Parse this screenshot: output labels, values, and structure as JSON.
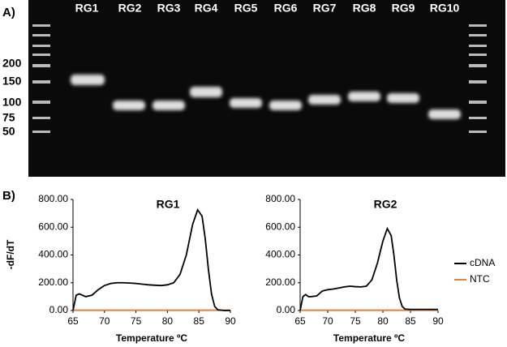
{
  "gel": {
    "panel_label": "A)",
    "lanes": [
      "RG1",
      "RG2",
      "RG3",
      "RG4",
      "RG5",
      "RG6",
      "RG7",
      "RG8",
      "RG9",
      "RG10"
    ],
    "ladder_labels": [
      "200",
      "150",
      "100",
      "75",
      "50"
    ]
  },
  "panel_b_label": "B)",
  "chart_data": [
    {
      "type": "line",
      "title": "RG1",
      "xlabel": "Temperature ºC",
      "ylabel": "-dF/dT",
      "x": [
        65,
        65.5,
        66,
        67,
        68,
        69,
        70,
        71,
        72,
        73,
        74,
        75,
        76,
        77,
        78,
        79,
        80,
        81,
        82,
        83,
        84,
        84.8,
        85.5,
        86,
        86.5,
        87,
        87.5,
        88,
        89,
        90
      ],
      "series": [
        {
          "name": "cDNA",
          "color": "#000000",
          "values": [
            0,
            110,
            120,
            100,
            110,
            150,
            180,
            195,
            200,
            200,
            198,
            195,
            190,
            185,
            182,
            180,
            185,
            200,
            260,
            400,
            620,
            725,
            680,
            520,
            300,
            120,
            30,
            5,
            0,
            0
          ]
        },
        {
          "name": "NTC",
          "color": "#f08030",
          "values": [
            3,
            3,
            3,
            3,
            3,
            3,
            3,
            3,
            3,
            3,
            3,
            3,
            3,
            3,
            3,
            3,
            3,
            3,
            3,
            3,
            3,
            3,
            3,
            3,
            3,
            3,
            3,
            3,
            3,
            3
          ]
        }
      ],
      "xlim": [
        65,
        90
      ],
      "xticks": [
        65,
        70,
        75,
        80,
        85,
        90
      ],
      "ylim": [
        0,
        800
      ],
      "yticks": [
        {
          "value": 0,
          "label": "0.00"
        },
        {
          "value": 200,
          "label": "200.00"
        },
        {
          "value": 400,
          "label": "400.00"
        },
        {
          "value": 600,
          "label": "600.00"
        },
        {
          "value": 800,
          "label": "800.00"
        }
      ]
    },
    {
      "type": "line",
      "title": "RG2",
      "xlabel": "Temperature ºC",
      "x": [
        65,
        65.5,
        66,
        66.5,
        67,
        68,
        69,
        70,
        71,
        72,
        73,
        74,
        75,
        76,
        77,
        78,
        79,
        80,
        80.8,
        81.5,
        82,
        82.5,
        83,
        83.5,
        84,
        85,
        88,
        90
      ],
      "series": [
        {
          "name": "cDNA",
          "color": "#000000",
          "values": [
            0,
            100,
            115,
            100,
            100,
            105,
            140,
            150,
            155,
            162,
            170,
            175,
            172,
            170,
            175,
            220,
            340,
            500,
            590,
            540,
            400,
            220,
            90,
            30,
            10,
            8,
            8,
            8
          ]
        },
        {
          "name": "NTC",
          "color": "#f08030",
          "values": [
            3,
            3,
            3,
            3,
            3,
            3,
            3,
            3,
            3,
            3,
            3,
            3,
            3,
            3,
            3,
            3,
            3,
            3,
            3,
            3,
            3,
            3,
            3,
            3,
            3,
            3,
            3,
            3
          ]
        }
      ],
      "xlim": [
        65,
        90
      ],
      "xticks": [
        65,
        70,
        75,
        80,
        85,
        90
      ],
      "ylim": [
        0,
        800
      ],
      "yticks": [
        {
          "value": 0,
          "label": "0.00"
        },
        {
          "value": 200,
          "label": "200.00"
        },
        {
          "value": 400,
          "label": "400.00"
        },
        {
          "value": 600,
          "label": "600.00"
        },
        {
          "value": 800,
          "label": "800.00"
        }
      ]
    }
  ]
}
